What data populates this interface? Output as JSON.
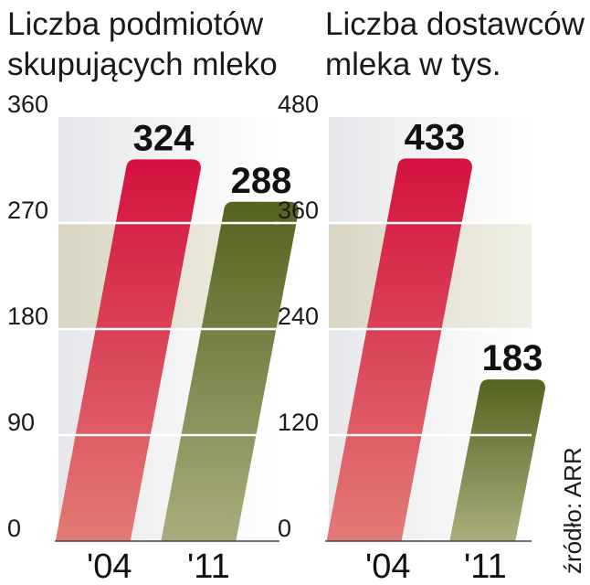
{
  "chart_data": [
    {
      "type": "bar",
      "title_lines": [
        "Liczba podmiotów",
        "skupujących mleko"
      ],
      "categories": [
        "'04",
        "'11"
      ],
      "values": [
        324,
        288
      ],
      "value_labels": [
        "324",
        "288"
      ],
      "ylim": [
        0,
        360
      ],
      "yticks": [
        0,
        90,
        180,
        270,
        360
      ],
      "ytick_labels": [
        "0",
        "90",
        "180",
        "270",
        "360"
      ],
      "grid": true,
      "bar_colors": [
        "#d4123f",
        "#5a6a28"
      ]
    },
    {
      "type": "bar",
      "title_lines": [
        "Liczba dostawców",
        "mleka w tys."
      ],
      "categories": [
        "'04",
        "'11"
      ],
      "values": [
        433,
        183
      ],
      "value_labels": [
        "433",
        "183"
      ],
      "ylim": [
        0,
        480
      ],
      "yticks": [
        0,
        120,
        240,
        360,
        480
      ],
      "ytick_labels": [
        "0",
        "120",
        "240",
        "360",
        "480"
      ],
      "grid": true,
      "bar_colors": [
        "#d4123f",
        "#5a6a28"
      ]
    }
  ],
  "source": "źródło: ARR",
  "colors": {
    "red_top": "#d4123f",
    "red_bottom": "#e27a74",
    "green_top": "#55631f",
    "green_bottom": "#a9ad7c",
    "panel_light": "#e6e7ea",
    "panel_band": "#d8d6c2",
    "grid": "#ffffff"
  }
}
